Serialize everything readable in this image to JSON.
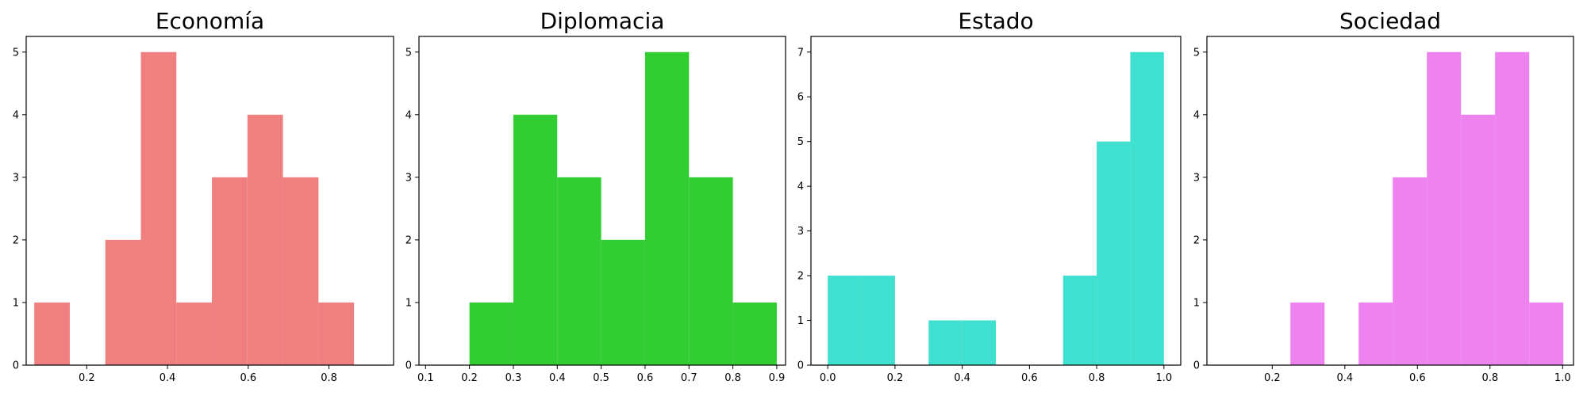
{
  "chart_data": [
    {
      "type": "bar",
      "title": "Economía",
      "color": "#f08080",
      "xlim": [
        0.05,
        0.96
      ],
      "ylim": [
        0,
        5.25
      ],
      "xticks": [
        0.2,
        0.4,
        0.6,
        0.8
      ],
      "xtick_labels": [
        "0.2",
        "0.4",
        "0.6",
        "0.8"
      ],
      "yticks": [
        0,
        1,
        2,
        3,
        4,
        5
      ],
      "ytick_labels": [
        "0",
        "1",
        "2",
        "3",
        "4",
        "5"
      ],
      "bins": [
        {
          "x0": 0.07,
          "x1": 0.158,
          "count": 1
        },
        {
          "x0": 0.158,
          "x1": 0.246,
          "count": 0
        },
        {
          "x0": 0.246,
          "x1": 0.334,
          "count": 2
        },
        {
          "x0": 0.334,
          "x1": 0.422,
          "count": 5
        },
        {
          "x0": 0.422,
          "x1": 0.51,
          "count": 1
        },
        {
          "x0": 0.51,
          "x1": 0.598,
          "count": 3
        },
        {
          "x0": 0.598,
          "x1": 0.686,
          "count": 4
        },
        {
          "x0": 0.686,
          "x1": 0.774,
          "count": 3
        },
        {
          "x0": 0.774,
          "x1": 0.862,
          "count": 1
        }
      ]
    },
    {
      "type": "bar",
      "title": "Diplomacia",
      "color": "#32cd32",
      "xlim": [
        0.085,
        0.92
      ],
      "ylim": [
        0,
        5.25
      ],
      "xticks": [
        0.1,
        0.2,
        0.3,
        0.4,
        0.5,
        0.6,
        0.7,
        0.8,
        0.9
      ],
      "xtick_labels": [
        "0.1",
        "0.2",
        "0.3",
        "0.4",
        "0.5",
        "0.6",
        "0.7",
        "0.8",
        "0.9"
      ],
      "yticks": [
        0,
        1,
        2,
        3,
        4,
        5
      ],
      "ytick_labels": [
        "0",
        "1",
        "2",
        "3",
        "4",
        "5"
      ],
      "bins": [
        {
          "x0": 0.2,
          "x1": 0.3,
          "count": 1
        },
        {
          "x0": 0.3,
          "x1": 0.4,
          "count": 4
        },
        {
          "x0": 0.4,
          "x1": 0.5,
          "count": 3
        },
        {
          "x0": 0.5,
          "x1": 0.6,
          "count": 2
        },
        {
          "x0": 0.6,
          "x1": 0.7,
          "count": 5
        },
        {
          "x0": 0.7,
          "x1": 0.8,
          "count": 3
        },
        {
          "x0": 0.8,
          "x1": 0.9,
          "count": 1
        }
      ]
    },
    {
      "type": "bar",
      "title": "Estado",
      "color": "#40e0d0",
      "xlim": [
        -0.05,
        1.05
      ],
      "ylim": [
        0,
        7.35
      ],
      "xticks": [
        0.0,
        0.2,
        0.4,
        0.6,
        0.8,
        1.0
      ],
      "xtick_labels": [
        "0.0",
        "0.2",
        "0.4",
        "0.6",
        "0.8",
        "1.0"
      ],
      "yticks": [
        0,
        1,
        2,
        3,
        4,
        5,
        6,
        7
      ],
      "ytick_labels": [
        "0",
        "1",
        "2",
        "3",
        "4",
        "5",
        "6",
        "7"
      ],
      "bins": [
        {
          "x0": 0.0,
          "x1": 0.1,
          "count": 2
        },
        {
          "x0": 0.1,
          "x1": 0.2,
          "count": 2
        },
        {
          "x0": 0.2,
          "x1": 0.3,
          "count": 0
        },
        {
          "x0": 0.3,
          "x1": 0.4,
          "count": 1
        },
        {
          "x0": 0.4,
          "x1": 0.5,
          "count": 1
        },
        {
          "x0": 0.5,
          "x1": 0.6,
          "count": 0
        },
        {
          "x0": 0.6,
          "x1": 0.7,
          "count": 0
        },
        {
          "x0": 0.7,
          "x1": 0.8,
          "count": 2
        },
        {
          "x0": 0.8,
          "x1": 0.9,
          "count": 5
        },
        {
          "x0": 0.9,
          "x1": 1.0,
          "count": 7
        }
      ]
    },
    {
      "type": "bar",
      "title": "Sociedad",
      "color": "#ee82ee",
      "xlim": [
        0.02,
        1.03
      ],
      "ylim": [
        0,
        5.25
      ],
      "xticks": [
        0.2,
        0.4,
        0.6,
        0.8,
        1.0
      ],
      "xtick_labels": [
        "0.2",
        "0.4",
        "0.6",
        "0.8",
        "1.0"
      ],
      "yticks": [
        0,
        1,
        2,
        3,
        4,
        5
      ],
      "ytick_labels": [
        "0",
        "1",
        "2",
        "3",
        "4",
        "5"
      ],
      "bins": [
        {
          "x0": 0.25,
          "x1": 0.344,
          "count": 1
        },
        {
          "x0": 0.344,
          "x1": 0.438,
          "count": 0
        },
        {
          "x0": 0.438,
          "x1": 0.532,
          "count": 1
        },
        {
          "x0": 0.532,
          "x1": 0.626,
          "count": 3
        },
        {
          "x0": 0.626,
          "x1": 0.72,
          "count": 5
        },
        {
          "x0": 0.72,
          "x1": 0.814,
          "count": 4
        },
        {
          "x0": 0.814,
          "x1": 0.908,
          "count": 5
        },
        {
          "x0": 0.908,
          "x1": 1.002,
          "count": 1
        }
      ]
    }
  ]
}
